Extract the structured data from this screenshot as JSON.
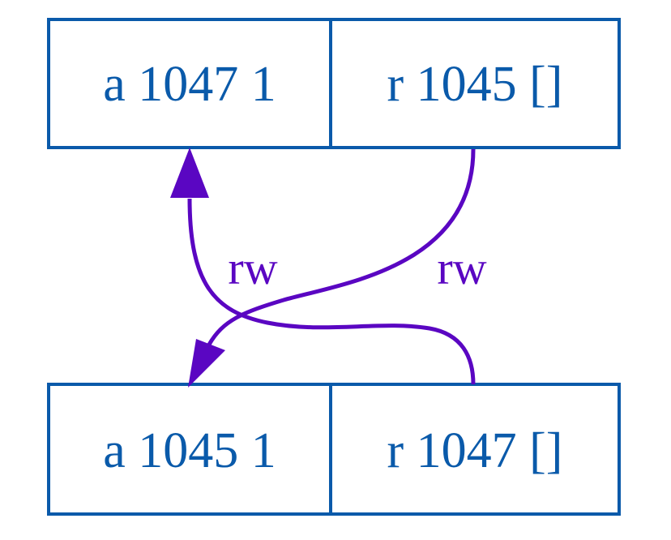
{
  "colors": {
    "node_stroke": "#0a5aaa",
    "node_text": "#0a5aaa",
    "edge": "#5a06c2",
    "background": "#ffffff"
  },
  "nodes": {
    "top": {
      "left_label": "a 1047 1",
      "right_label": "r 1045 []"
    },
    "bottom": {
      "left_label": "a 1045 1",
      "right_label": "r 1047 []"
    }
  },
  "edges": {
    "top_to_bottom": {
      "label": "rw"
    },
    "bottom_to_top": {
      "label": "rw"
    }
  }
}
